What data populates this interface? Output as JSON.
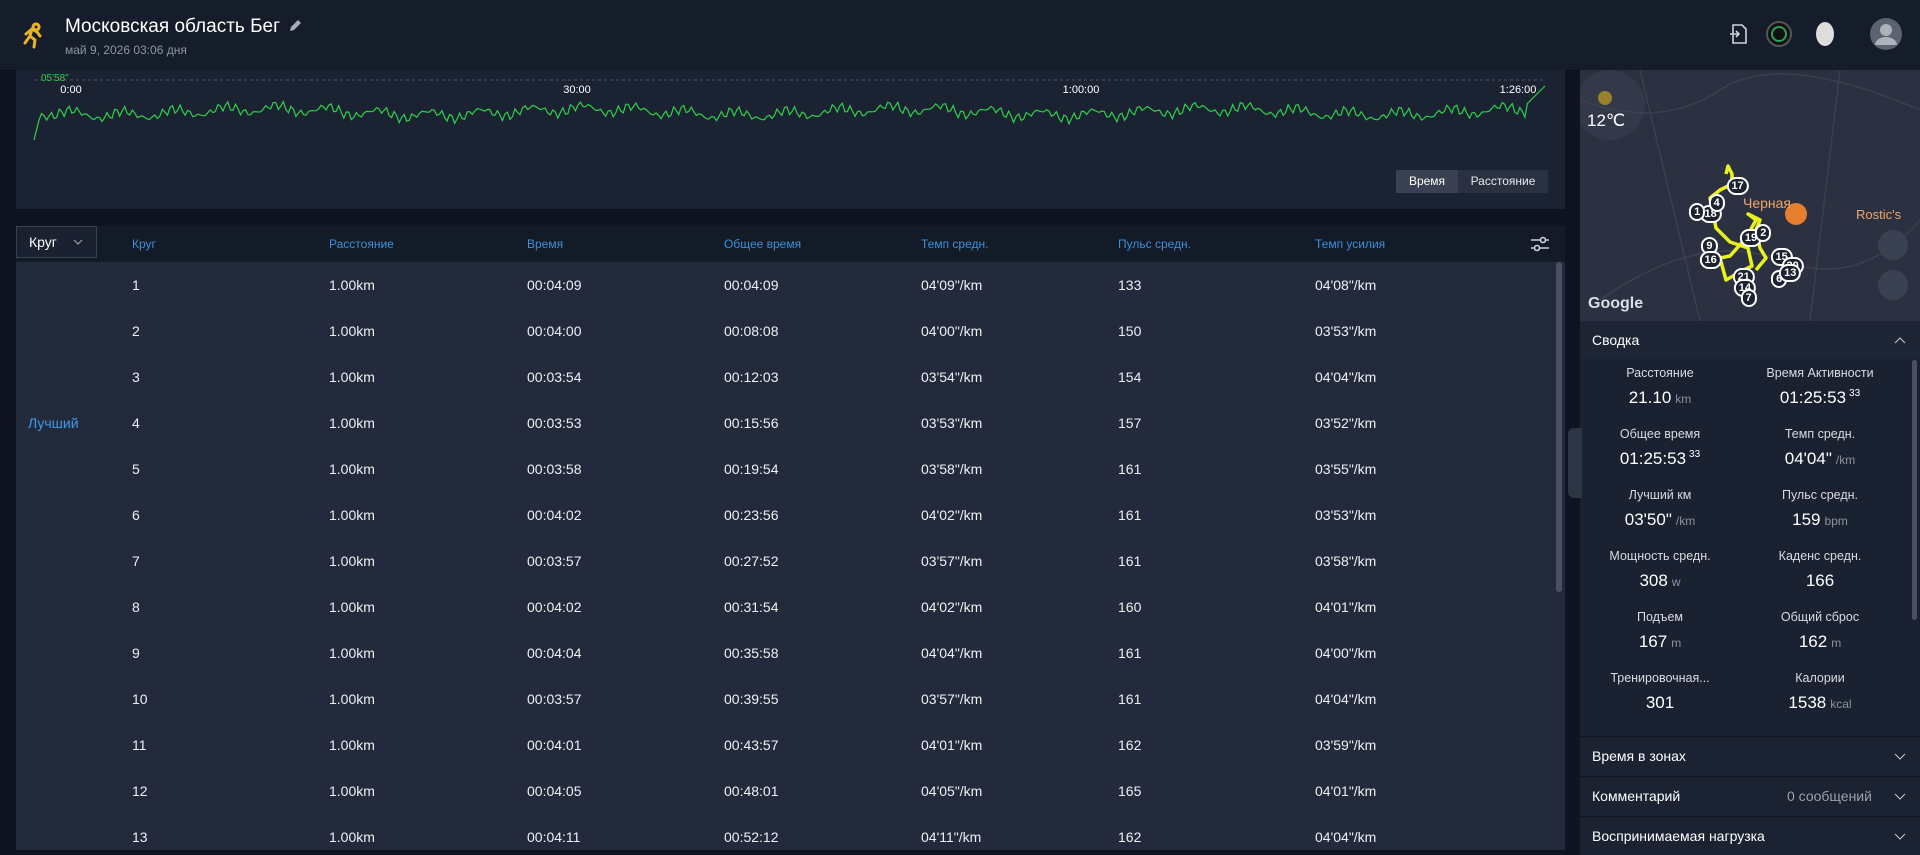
{
  "header": {
    "title": "Московская область Бег",
    "date": "май 9, 2026 03:06 дня"
  },
  "pace_chart": {
    "max_label": "05'58\"",
    "x_labels": [
      "0:00",
      "30:00",
      "1:00:00",
      "1:26:00"
    ],
    "toggle": [
      "Время",
      "Расстояние"
    ]
  },
  "weather": {
    "temp": "12℃"
  },
  "map": {
    "places": [
      "Черная",
      "Rostic's"
    ],
    "attribution": "Google",
    "markers": [
      "17",
      "18",
      "4",
      "1",
      "19",
      "2",
      "9",
      "16",
      "15",
      "20",
      "21",
      "14",
      "7",
      "6",
      "13"
    ]
  },
  "table": {
    "lap_selector": "Круг",
    "columns": [
      "Круг",
      "Расстояние",
      "Время",
      "Общее время",
      "Темп средн.",
      "Пульс средн.",
      "Темп усилия"
    ],
    "rows": [
      {
        "cells": [
          "1",
          "1.00km",
          "00:04:09",
          "00:04:09",
          "04'09\"/km",
          "133",
          "04'08\"/km"
        ]
      },
      {
        "cells": [
          "2",
          "1.00km",
          "00:04:00",
          "00:08:08",
          "04'00\"/km",
          "150",
          "03'53\"/km"
        ]
      },
      {
        "cells": [
          "3",
          "1.00km",
          "00:03:54",
          "00:12:03",
          "03'54\"/km",
          "154",
          "04'04\"/km"
        ]
      },
      {
        "badge": "Лучший",
        "cells": [
          "4",
          "1.00km",
          "00:03:53",
          "00:15:56",
          "03'53\"/km",
          "157",
          "03'52\"/km"
        ]
      },
      {
        "cells": [
          "5",
          "1.00km",
          "00:03:58",
          "00:19:54",
          "03'58\"/km",
          "161",
          "03'55\"/km"
        ]
      },
      {
        "cells": [
          "6",
          "1.00km",
          "00:04:02",
          "00:23:56",
          "04'02\"/km",
          "161",
          "03'53\"/km"
        ]
      },
      {
        "cells": [
          "7",
          "1.00km",
          "00:03:57",
          "00:27:52",
          "03'57\"/km",
          "161",
          "03'58\"/km"
        ]
      },
      {
        "cells": [
          "8",
          "1.00km",
          "00:04:02",
          "00:31:54",
          "04'02\"/km",
          "160",
          "04'01\"/km"
        ]
      },
      {
        "cells": [
          "9",
          "1.00km",
          "00:04:04",
          "00:35:58",
          "04'04\"/km",
          "161",
          "04'00\"/km"
        ]
      },
      {
        "cells": [
          "10",
          "1.00km",
          "00:03:57",
          "00:39:55",
          "03'57\"/km",
          "161",
          "04'04\"/km"
        ]
      },
      {
        "cells": [
          "11",
          "1.00km",
          "00:04:01",
          "00:43:57",
          "04'01\"/km",
          "162",
          "03'59\"/km"
        ]
      },
      {
        "cells": [
          "12",
          "1.00km",
          "00:04:05",
          "00:48:01",
          "04'05\"/km",
          "165",
          "04'01\"/km"
        ]
      },
      {
        "cells": [
          "13",
          "1.00km",
          "00:04:11",
          "00:52:12",
          "04'11\"/km",
          "162",
          "04'04\"/km"
        ]
      }
    ]
  },
  "summary": {
    "title": "Сводка",
    "items": [
      {
        "label": "Расстояние",
        "value": "21.10",
        "unit": "km"
      },
      {
        "label": "Время Активности",
        "value": "01:25:53",
        "sup": "33"
      },
      {
        "label": "Общее время",
        "value": "01:25:53",
        "sup": "33"
      },
      {
        "label": "Темп средн.",
        "value": "04'04\"",
        "unit": "/km"
      },
      {
        "label": "Лучший км",
        "value": "03'50\"",
        "unit": "/km"
      },
      {
        "label": "Пульс средн.",
        "value": "159",
        "unit": "bpm"
      },
      {
        "label": "Мощность средн.",
        "value": "308",
        "unit": "w"
      },
      {
        "label": "Каденс средн.",
        "value": "166"
      },
      {
        "label": "Подъем",
        "value": "167",
        "unit": "m"
      },
      {
        "label": "Общий сброс",
        "value": "162",
        "unit": "m"
      },
      {
        "label": "Тренировочная...",
        "value": "301"
      },
      {
        "label": "Калории",
        "value": "1538",
        "unit": "kcal"
      }
    ]
  },
  "sections": [
    {
      "title": "Время в зонах"
    },
    {
      "title": "Комментарий",
      "value": "0 сообщений"
    },
    {
      "title": "Воспринимаемая нагрузка"
    }
  ]
}
